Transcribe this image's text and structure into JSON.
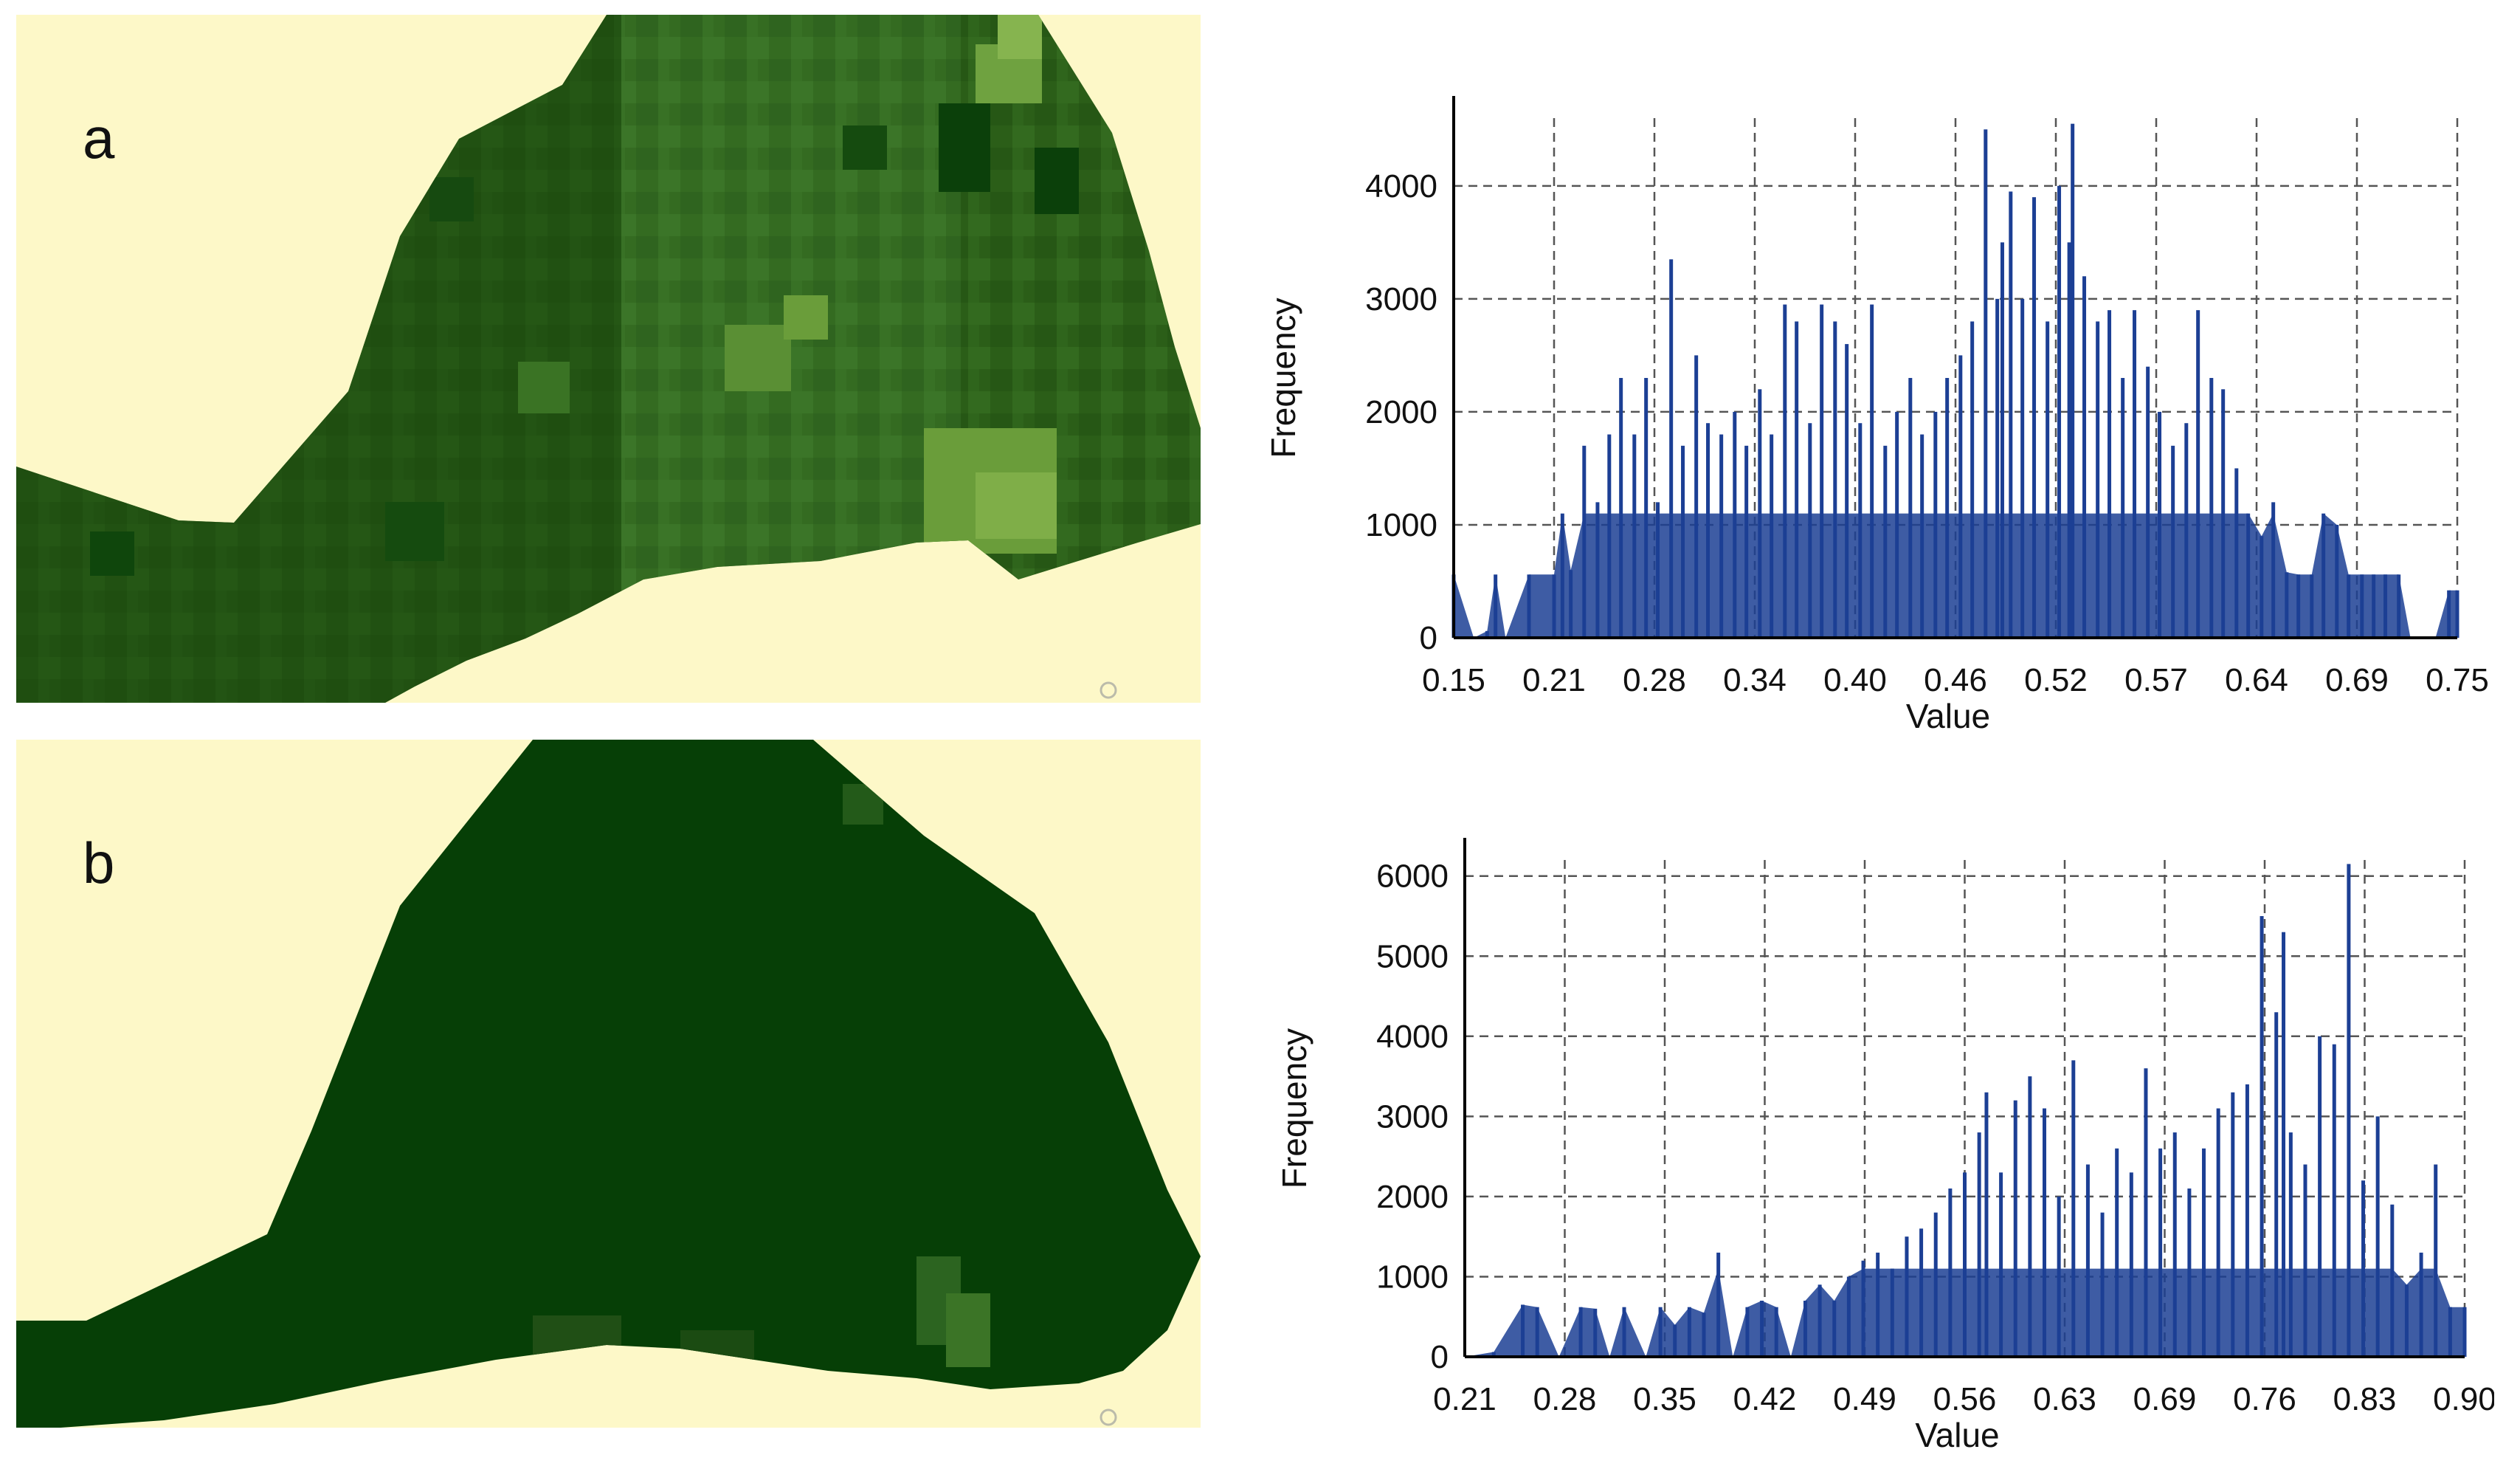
{
  "panels": {
    "a": {
      "label": "a"
    },
    "b": {
      "label": "b"
    }
  },
  "colors": {
    "background": "#fdf8c8",
    "dark_green": "#063f06",
    "mid_green": "#2f6b1d",
    "light_green": "#6a9d3a",
    "bar": "#1c3f94"
  },
  "chart_data": [
    {
      "type": "bar",
      "panel": "a",
      "title": "",
      "xlabel": "Value",
      "ylabel": "Frequency",
      "xticks": [
        "0.15",
        "0.21",
        "0.28",
        "0.34",
        "0.40",
        "0.46",
        "0.52",
        "0.57",
        "0.64",
        "0.69",
        "0.75"
      ],
      "yticks": [
        0,
        1000,
        2000,
        3000,
        4000
      ],
      "xlim": [
        0.15,
        0.75
      ],
      "ylim": [
        0,
        4600
      ],
      "grid": true,
      "x": [
        0.15,
        0.162,
        0.17,
        0.175,
        0.181,
        0.195,
        0.21,
        0.215,
        0.22,
        0.228,
        0.236,
        0.243,
        0.25,
        0.258,
        0.265,
        0.272,
        0.28,
        0.287,
        0.295,
        0.302,
        0.31,
        0.318,
        0.325,
        0.333,
        0.34,
        0.348,
        0.355,
        0.363,
        0.37,
        0.378,
        0.385,
        0.393,
        0.4,
        0.408,
        0.415,
        0.423,
        0.43,
        0.438,
        0.445,
        0.453,
        0.46,
        0.468,
        0.475,
        0.478,
        0.483,
        0.49,
        0.497,
        0.505,
        0.512,
        0.518,
        0.52,
        0.527,
        0.535,
        0.542,
        0.55,
        0.557,
        0.565,
        0.572,
        0.58,
        0.588,
        0.595,
        0.603,
        0.61,
        0.618,
        0.625,
        0.633,
        0.64,
        0.648,
        0.655,
        0.663,
        0.67,
        0.678,
        0.685,
        0.693,
        0.7,
        0.707,
        0.715,
        0.722,
        0.73,
        0.737,
        0.745,
        0.75
      ],
      "values": [
        560,
        0,
        60,
        560,
        0,
        560,
        560,
        1100,
        600,
        1700,
        1200,
        1800,
        2300,
        1800,
        2300,
        1200,
        3350,
        1700,
        2500,
        1900,
        1800,
        2000,
        1700,
        2200,
        1800,
        2950,
        2800,
        1900,
        2950,
        2800,
        2600,
        1900,
        2950,
        1700,
        2000,
        2300,
        1800,
        2000,
        2300,
        2500,
        2800,
        4500,
        3000,
        3500,
        3950,
        3000,
        3900,
        2800,
        4000,
        3500,
        4550,
        3200,
        2800,
        2900,
        2300,
        2900,
        2400,
        2000,
        1700,
        1900,
        2900,
        2300,
        2200,
        1500,
        1100,
        900,
        1200,
        580,
        560,
        560,
        1100,
        1000,
        560,
        560,
        560,
        560,
        560,
        0,
        0,
        0,
        420,
        420
      ]
    },
    {
      "type": "bar",
      "panel": "b",
      "title": "",
      "xlabel": "Value",
      "ylabel": "Frequency",
      "xticks": [
        "0.21",
        "0.28",
        "0.35",
        "0.42",
        "0.49",
        "0.56",
        "0.63",
        "0.69",
        "0.76",
        "0.83",
        "0.90"
      ],
      "yticks": [
        0,
        1000,
        2000,
        3000,
        4000,
        5000,
        6000
      ],
      "xlim": [
        0.21,
        0.9
      ],
      "ylim": [
        0,
        6200
      ],
      "grid": true,
      "x": [
        0.21,
        0.23,
        0.25,
        0.26,
        0.275,
        0.29,
        0.3,
        0.31,
        0.32,
        0.335,
        0.345,
        0.355,
        0.365,
        0.375,
        0.385,
        0.395,
        0.405,
        0.415,
        0.425,
        0.435,
        0.445,
        0.455,
        0.465,
        0.475,
        0.485,
        0.495,
        0.505,
        0.515,
        0.525,
        0.535,
        0.545,
        0.555,
        0.565,
        0.57,
        0.58,
        0.59,
        0.6,
        0.61,
        0.62,
        0.63,
        0.64,
        0.65,
        0.66,
        0.67,
        0.68,
        0.69,
        0.7,
        0.71,
        0.72,
        0.73,
        0.74,
        0.75,
        0.76,
        0.77,
        0.775,
        0.78,
        0.79,
        0.8,
        0.81,
        0.82,
        0.83,
        0.84,
        0.85,
        0.86,
        0.87,
        0.88,
        0.89,
        0.9
      ],
      "values": [
        0,
        60,
        650,
        620,
        0,
        620,
        600,
        0,
        620,
        0,
        620,
        400,
        620,
        550,
        1300,
        0,
        620,
        700,
        620,
        0,
        700,
        900,
        700,
        1000,
        1200,
        1300,
        1100,
        1500,
        1600,
        1800,
        2100,
        2300,
        2800,
        3300,
        2300,
        3200,
        3500,
        3100,
        2000,
        3700,
        2400,
        1800,
        2600,
        2300,
        3600,
        2600,
        2800,
        2100,
        2600,
        3100,
        3300,
        3400,
        5500,
        4300,
        5300,
        2800,
        2400,
        4000,
        3900,
        6150,
        2200,
        3000,
        1900,
        900,
        1300,
        2400,
        620,
        620
      ]
    }
  ]
}
